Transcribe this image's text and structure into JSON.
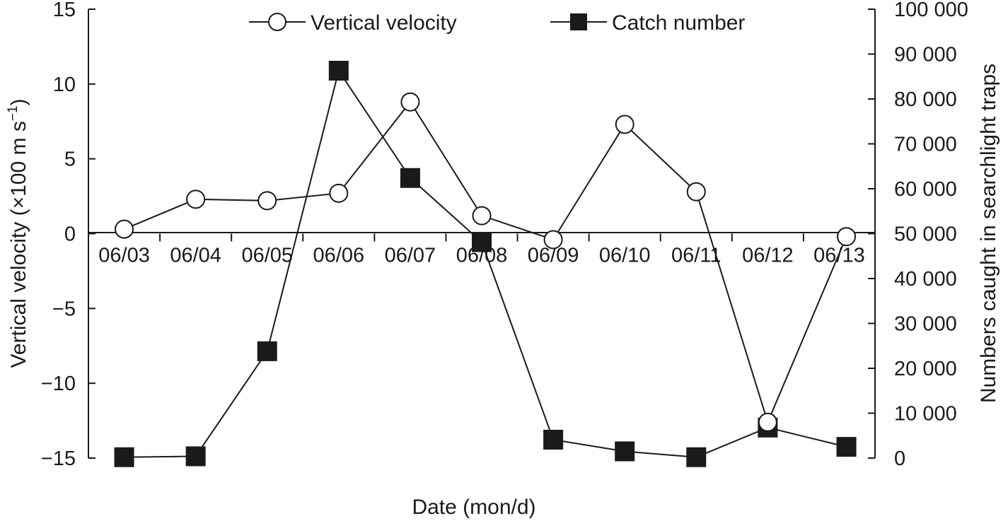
{
  "chart_data": {
    "type": "line",
    "xlabel": "Date (mon/d)",
    "ylabel": "Vertical velocity (×100 m s⁻¹)",
    "ylabel_main": "Vertical velocity (×100 m s",
    "ylabel_exp": "−1",
    "ylabel_close": ")",
    "y2label": "Numbers caught in searchlight traps",
    "categories": [
      "06/03",
      "06/04",
      "06/05",
      "06/06",
      "06/07",
      "06/08",
      "06/09",
      "06/10",
      "06/11",
      "06/12",
      "06/13"
    ],
    "ylim": [
      -15,
      15
    ],
    "y2lim": [
      0,
      100000
    ],
    "yticks": [
      15,
      10,
      5,
      0,
      -5,
      -10,
      -15
    ],
    "ytick_labels": [
      "15",
      "10",
      "5",
      "0",
      "−5",
      "−10",
      "−15"
    ],
    "y2ticks": [
      100000,
      90000,
      80000,
      70000,
      60000,
      50000,
      40000,
      30000,
      20000,
      10000,
      0
    ],
    "y2tick_labels": [
      "100 000",
      "90 000",
      "80 000",
      "70 000",
      "60 000",
      "50 000",
      "40 000",
      "30 000",
      "20 000",
      "10 000",
      "0"
    ],
    "legend_position": "top",
    "grid": false,
    "series": [
      {
        "name": "Vertical velocity",
        "axis": "left",
        "marker": "open-circle",
        "x": [
          0.5,
          1.5,
          2.5,
          3.5,
          4.5,
          5.5,
          6.5,
          7.5,
          8.5,
          9.5,
          10.6
        ],
        "values": [
          0.3,
          2.3,
          2.2,
          2.7,
          8.8,
          1.2,
          -0.4,
          7.3,
          2.8,
          -12.6,
          -0.2
        ]
      },
      {
        "name": "Catch number",
        "axis": "right",
        "marker": "filled-square",
        "x": [
          0.5,
          1.5,
          2.5,
          3.5,
          4.5,
          5.5,
          6.5,
          7.5,
          8.5,
          9.5,
          10.6
        ],
        "values": [
          200,
          400,
          23800,
          86300,
          62400,
          48100,
          4100,
          1500,
          200,
          6800,
          2500
        ]
      }
    ]
  }
}
